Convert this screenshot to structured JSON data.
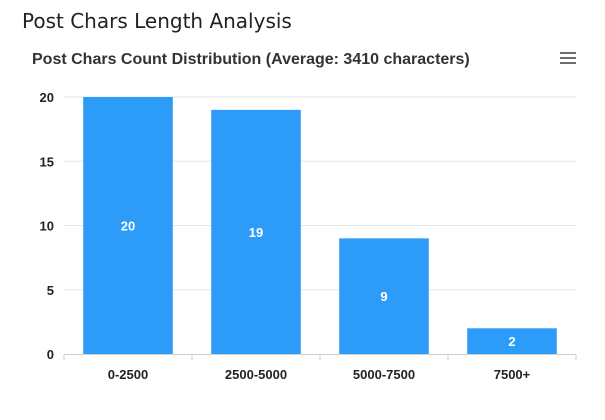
{
  "page": {
    "title": "Post Chars Length Analysis"
  },
  "menu": {
    "icon": "hamburger-menu-icon"
  },
  "colors": {
    "bar": "#2d9cf8",
    "grid": "#e6e6e6",
    "axis": "#cccccc"
  },
  "chart_data": {
    "type": "bar",
    "title": "Post Chars Count Distribution (Average: 3410 characters)",
    "xlabel": "",
    "ylabel": "",
    "categories": [
      "0-2500",
      "2500-5000",
      "5000-7500",
      "7500+"
    ],
    "values": [
      20,
      19,
      9,
      2
    ],
    "data_labels": [
      "20",
      "19",
      "9",
      "2"
    ],
    "ylim": [
      0,
      20
    ],
    "yticks": [
      0,
      5,
      10,
      15,
      20
    ],
    "ytick_labels": [
      "0",
      "5",
      "10",
      "15",
      "20"
    ],
    "grid": true,
    "legend": "none"
  }
}
